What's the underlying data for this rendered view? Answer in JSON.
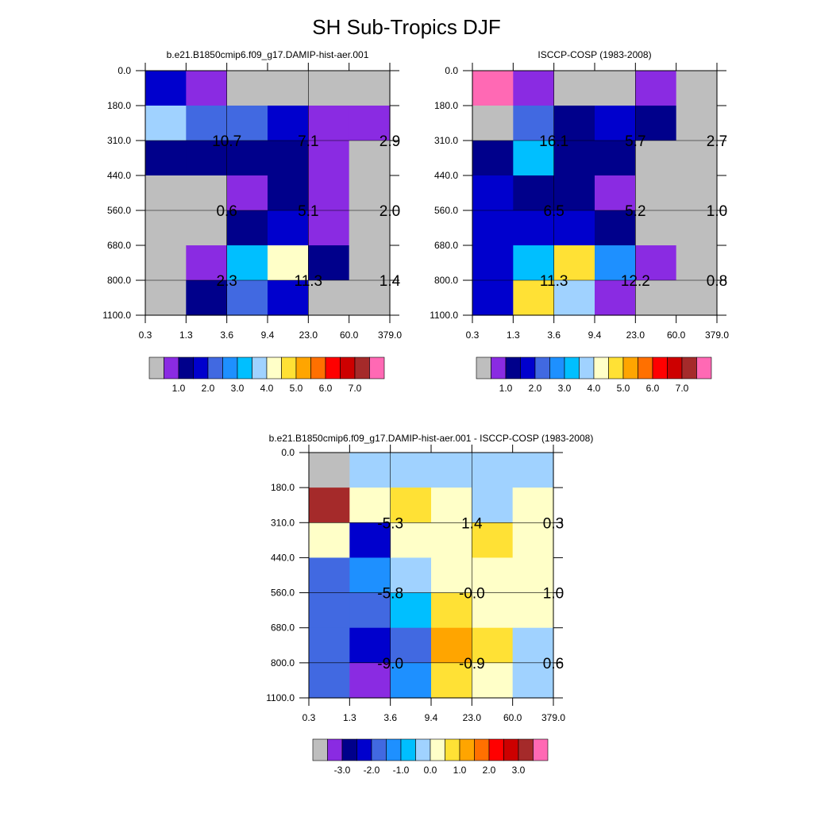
{
  "title": "SH Sub-Tropics DJF",
  "colors": {
    "palette": [
      "#bebebe",
      "#8a2be2",
      "#00008b",
      "#0000cd",
      "#4169e1",
      "#1e90ff",
      "#00bfff",
      "#a0d2ff",
      "#ffffc8",
      "#ffe135",
      "#ffa500",
      "#ff7000",
      "#ff0000",
      "#cd0000",
      "#a52a2a",
      "#ff69b4"
    ],
    "text": "#000000",
    "gridline": "#000000"
  },
  "chart_data": [
    {
      "type": "heatmap",
      "title": "b.e21.B1850cmip6.f09_g17.DAMIP-hist-aer.001",
      "x_ticks": [
        "0.3",
        "1.3",
        "3.6",
        "9.4",
        "23.0",
        "60.0",
        "379.0"
      ],
      "y_ticks": [
        "0.0",
        "180.0",
        "310.0",
        "440.0",
        "560.0",
        "680.0",
        "800.0",
        "1100.0"
      ],
      "cell_colors": [
        [
          3,
          1,
          0,
          0,
          0,
          0
        ],
        [
          7,
          4,
          4,
          3,
          1,
          1
        ],
        [
          2,
          2,
          2,
          2,
          1,
          0
        ],
        [
          0,
          0,
          1,
          2,
          1,
          0
        ],
        [
          0,
          0,
          2,
          3,
          1,
          0
        ],
        [
          0,
          1,
          6,
          8,
          2,
          0
        ],
        [
          0,
          2,
          4,
          3,
          0,
          0
        ]
      ],
      "labels": [
        {
          "text": "10.7",
          "col": 1,
          "row": 1
        },
        {
          "text": "7.1",
          "col": 3,
          "row": 1
        },
        {
          "text": "2.9",
          "col": 5,
          "row": 1
        },
        {
          "text": "0.6",
          "col": 1,
          "row": 3
        },
        {
          "text": "5.1",
          "col": 3,
          "row": 3
        },
        {
          "text": "2.0",
          "col": 5,
          "row": 3
        },
        {
          "text": "2.3",
          "col": 1,
          "row": 5
        },
        {
          "text": "11.3",
          "col": 3,
          "row": 5
        },
        {
          "text": "1.4",
          "col": 5,
          "row": 5
        }
      ],
      "colorbar_labels": [
        "1.0",
        "2.0",
        "3.0",
        "4.0",
        "5.0",
        "6.0",
        "7.0"
      ]
    },
    {
      "type": "heatmap",
      "title": "ISCCP-COSP (1983-2008)",
      "x_ticks": [
        "0.3",
        "1.3",
        "3.6",
        "9.4",
        "23.0",
        "60.0",
        "379.0"
      ],
      "y_ticks": [
        "0.0",
        "180.0",
        "310.0",
        "440.0",
        "560.0",
        "680.0",
        "800.0",
        "1100.0"
      ],
      "cell_colors": [
        [
          15,
          1,
          0,
          0,
          1,
          0
        ],
        [
          0,
          4,
          2,
          3,
          2,
          0
        ],
        [
          2,
          6,
          2,
          2,
          0,
          0
        ],
        [
          3,
          2,
          2,
          1,
          0,
          0
        ],
        [
          3,
          3,
          3,
          2,
          0,
          0
        ],
        [
          3,
          6,
          9,
          5,
          1,
          0
        ],
        [
          3,
          9,
          7,
          1,
          0,
          0
        ]
      ],
      "labels": [
        {
          "text": "16.1",
          "col": 1,
          "row": 1
        },
        {
          "text": "5.7",
          "col": 3,
          "row": 1
        },
        {
          "text": "2.7",
          "col": 5,
          "row": 1
        },
        {
          "text": "6.5",
          "col": 1,
          "row": 3
        },
        {
          "text": "5.2",
          "col": 3,
          "row": 3
        },
        {
          "text": "1.0",
          "col": 5,
          "row": 3
        },
        {
          "text": "11.3",
          "col": 1,
          "row": 5
        },
        {
          "text": "12.2",
          "col": 3,
          "row": 5
        },
        {
          "text": "0.8",
          "col": 5,
          "row": 5
        }
      ],
      "colorbar_labels": [
        "1.0",
        "2.0",
        "3.0",
        "4.0",
        "5.0",
        "6.0",
        "7.0"
      ]
    },
    {
      "type": "heatmap",
      "title": "b.e21.B1850cmip6.f09_g17.DAMIP-hist-aer.001 - ISCCP-COSP (1983-2008)",
      "x_ticks": [
        "0.3",
        "1.3",
        "3.6",
        "9.4",
        "23.0",
        "60.0",
        "379.0"
      ],
      "y_ticks": [
        "0.0",
        "180.0",
        "310.0",
        "440.0",
        "560.0",
        "680.0",
        "800.0",
        "1100.0"
      ],
      "cell_colors": [
        [
          0,
          7,
          7,
          7,
          7,
          7
        ],
        [
          14,
          8,
          9,
          8,
          7,
          8
        ],
        [
          8,
          3,
          8,
          8,
          9,
          8
        ],
        [
          4,
          5,
          7,
          8,
          8,
          8
        ],
        [
          4,
          4,
          6,
          9,
          8,
          8
        ],
        [
          4,
          3,
          4,
          10,
          9,
          7
        ],
        [
          4,
          1,
          5,
          9,
          8,
          7
        ]
      ],
      "labels": [
        {
          "text": "-5.3",
          "col": 1,
          "row": 1
        },
        {
          "text": "1.4",
          "col": 3,
          "row": 1
        },
        {
          "text": "0.3",
          "col": 5,
          "row": 1
        },
        {
          "text": "-5.8",
          "col": 1,
          "row": 3
        },
        {
          "text": "-0.0",
          "col": 3,
          "row": 3
        },
        {
          "text": "1.0",
          "col": 5,
          "row": 3
        },
        {
          "text": "-9.0",
          "col": 1,
          "row": 5
        },
        {
          "text": "-0.9",
          "col": 3,
          "row": 5
        },
        {
          "text": "0.6",
          "col": 5,
          "row": 5
        }
      ],
      "colorbar_labels": [
        "-3.0",
        "-2.0",
        "-1.0",
        "0.0",
        "1.0",
        "2.0",
        "3.0"
      ]
    }
  ]
}
